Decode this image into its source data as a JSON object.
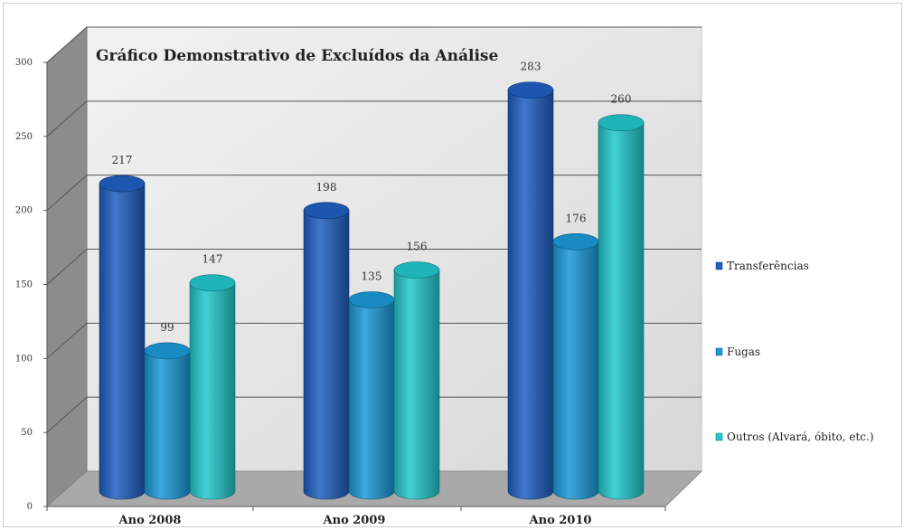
{
  "chart_data": {
    "type": "bar",
    "title": "Gráfico Demonstrativo de Excluídos da Análise",
    "categories": [
      "Ano 2008",
      "Ano 2009",
      "Ano 2010"
    ],
    "series": [
      {
        "name": "Transferências",
        "values": [
          217,
          198,
          283
        ],
        "color": "#1f5fc2"
      },
      {
        "name": "Fugas",
        "values": [
          99,
          135,
          176
        ],
        "color": "#1b9ad8"
      },
      {
        "name": "Outros (Alvará, óbito, etc.)",
        "values": [
          147,
          156,
          260
        ],
        "color": "#22c9cc"
      }
    ],
    "y_ticks": [
      "0",
      "50",
      "100",
      "150",
      "200",
      "250",
      "300"
    ],
    "data_labels": [
      [
        "217",
        "198",
        "283"
      ],
      [
        "99",
        "135",
        "176"
      ],
      [
        "147",
        "156",
        "260"
      ]
    ],
    "ylim": [
      0,
      300
    ],
    "grid": true,
    "legend_position": "right",
    "style": "3d-cylinder"
  }
}
